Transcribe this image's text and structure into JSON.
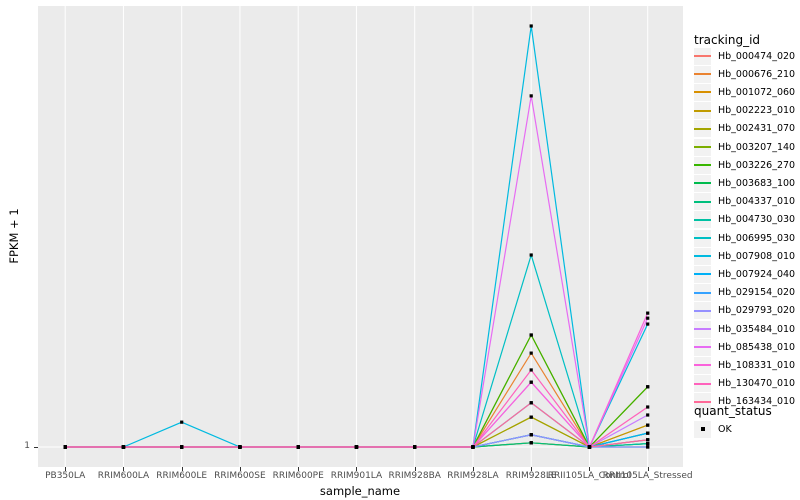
{
  "y_axis": {
    "label": "FPKM + 1",
    "tick_labels": [
      "1"
    ]
  },
  "x_axis": {
    "label": "sample_name"
  },
  "legend": {
    "tracking_title": "tracking_id",
    "quant_title": "quant_status",
    "quant_items": [
      {
        "label": "OK",
        "marker": "black-square"
      }
    ]
  },
  "colors": {
    "panel_background": "#EBEBEB",
    "gridline": "#FFFFFF",
    "tick_text": "#4D4D4D",
    "axis_title_text": "#000000",
    "marker": "#000000",
    "legend_key_background": "#F2F2F2"
  },
  "chart_data": {
    "type": "line",
    "title": "",
    "xlabel": "sample_name",
    "ylabel": "FPKM + 1",
    "y_tick_labels": [
      "1"
    ],
    "y_scale": "only the value 1 is labeled on the axis; series values are recorded as fraction of panel height above the y=1 baseline",
    "categories": [
      "PB350LA",
      "RRIM600LA",
      "RRIM600LE",
      "RRIM600SE",
      "RRIM600PE",
      "RRIM901LA",
      "RRIM928BA",
      "RRIM928LA",
      "RRIM928LE",
      "RRII105LA_Control",
      "RRII105LA_Stressed"
    ],
    "marker": {
      "shape": "square",
      "color": "#000000",
      "meaning": "quant_status OK"
    },
    "series": [
      {
        "name": "Hb_000474_020",
        "color": "#F8766D",
        "heights": [
          0,
          0,
          0,
          0,
          0,
          0,
          0,
          0,
          0.01,
          0,
          0.017
        ]
      },
      {
        "name": "Hb_000676_210",
        "color": "#EA8331",
        "heights": [
          0,
          0,
          0,
          0,
          0,
          0,
          0,
          0,
          0.223,
          0,
          0.052
        ]
      },
      {
        "name": "Hb_001072_060",
        "color": "#D89000",
        "heights": [
          0,
          0,
          0,
          0,
          0,
          0,
          0,
          0,
          0.266,
          0,
          0.143
        ]
      },
      {
        "name": "Hb_002223_010",
        "color": "#C09B00",
        "heights": [
          0,
          0,
          0,
          0,
          0,
          0,
          0,
          0,
          0.071,
          0,
          0.052
        ]
      },
      {
        "name": "Hb_002431_070",
        "color": "#A3A500",
        "heights": [
          0,
          0,
          0,
          0,
          0,
          0,
          0,
          0,
          0.071,
          0,
          0.033
        ]
      },
      {
        "name": "Hb_003207_140",
        "color": "#7CAE00",
        "heights": [
          0,
          0,
          0,
          0,
          0,
          0,
          0,
          0,
          0.01,
          0,
          0.008
        ]
      },
      {
        "name": "Hb_003226_270",
        "color": "#39B600",
        "heights": [
          0,
          0,
          0,
          0,
          0,
          0,
          0,
          0,
          0.266,
          0,
          0.143
        ]
      },
      {
        "name": "Hb_003683_100",
        "color": "#00BB4E",
        "heights": [
          0,
          0,
          0,
          0,
          0,
          0,
          0,
          0,
          0.029,
          0,
          0.008
        ]
      },
      {
        "name": "Hb_004337_010",
        "color": "#00BF7D",
        "heights": [
          0,
          0,
          0,
          0,
          0,
          0,
          0,
          0,
          0.01,
          0,
          0
        ]
      },
      {
        "name": "Hb_004730_030",
        "color": "#00C1A3",
        "heights": [
          0,
          0,
          0,
          0,
          0,
          0,
          0,
          0,
          0.029,
          0,
          0.008
        ]
      },
      {
        "name": "Hb_006995_030",
        "color": "#00BFC4",
        "heights": [
          0,
          0,
          0,
          0,
          0,
          0,
          0,
          0,
          0.456,
          0,
          0.033
        ]
      },
      {
        "name": "Hb_007908_010",
        "color": "#00BAE0",
        "heights": [
          0,
          0,
          0.059,
          0,
          0,
          0,
          0,
          0,
          1.0,
          0,
          0.292
        ]
      },
      {
        "name": "Hb_007924_040",
        "color": "#00B0F6",
        "heights": [
          0,
          0,
          0,
          0,
          0,
          0,
          0,
          0,
          0.105,
          0,
          0.033
        ]
      },
      {
        "name": "Hb_029154_020",
        "color": "#35A2FF",
        "heights": [
          0,
          0,
          0,
          0,
          0,
          0,
          0,
          0,
          0.029,
          0,
          0.017
        ]
      },
      {
        "name": "Hb_029793_020",
        "color": "#9590FF",
        "heights": [
          0,
          0,
          0,
          0,
          0,
          0,
          0,
          0,
          0.029,
          0,
          0
        ]
      },
      {
        "name": "Hb_035484_010",
        "color": "#C77CFF",
        "heights": [
          0,
          0,
          0,
          0,
          0,
          0,
          0,
          0,
          0.154,
          0,
          0.076
        ]
      },
      {
        "name": "Hb_085438_010",
        "color": "#E76BF3",
        "heights": [
          0,
          0,
          0,
          0,
          0,
          0,
          0,
          0,
          0.834,
          0,
          0.306
        ]
      },
      {
        "name": "Hb_108331_010",
        "color": "#FA62DB",
        "heights": [
          0,
          0,
          0,
          0,
          0,
          0,
          0,
          0,
          0.154,
          0,
          0.318
        ]
      },
      {
        "name": "Hb_130470_010",
        "color": "#FF62BC",
        "heights": [
          0,
          0,
          0,
          0,
          0,
          0,
          0,
          0,
          0.183,
          0,
          0.095
        ]
      },
      {
        "name": "Hb_163434_010",
        "color": "#FF6A98",
        "heights": [
          0,
          0,
          0,
          0,
          0,
          0,
          0,
          0,
          0.105,
          0,
          0.017
        ]
      }
    ]
  }
}
